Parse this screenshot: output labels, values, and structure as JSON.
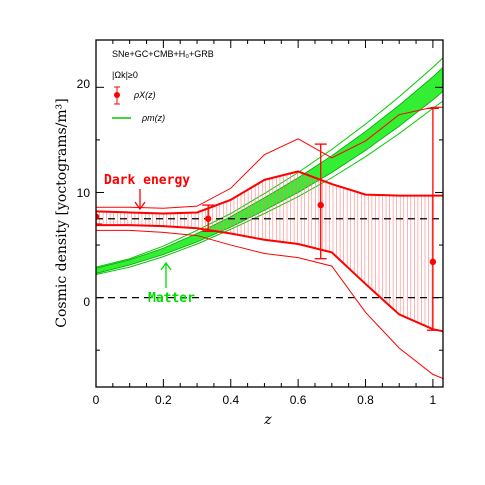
{
  "chart_data": {
    "type": "line",
    "xlabel": "z",
    "ylabel": "Cosmic density [yoctograms/m³]",
    "xlim": [
      0,
      1.03
    ],
    "ylim": [
      -8.5,
      24.5
    ],
    "x_ticks": [
      0,
      0.2,
      0.4,
      0.6,
      0.8,
      1
    ],
    "x_tick_labels": [
      "0",
      "0.2",
      "0.4",
      "0.6",
      "0.8",
      "1"
    ],
    "y_ticks": [
      0,
      10,
      20
    ],
    "y_tick_labels": [
      "0",
      "10",
      "20"
    ],
    "grid": false,
    "legend": {
      "placement": "top-left",
      "header": "SNe+GC+CMB+H₀+GRB",
      "condition": "|Ωk|≥0",
      "entries": [
        "ρX(z)",
        "ρm(z)"
      ]
    },
    "annotations": [
      {
        "text": "Dark energy",
        "color": "#ff0000",
        "arrow_to": [
          0.13,
          8.4
        ]
      },
      {
        "text": "Matter",
        "color": "#00dd00",
        "arrow_to": [
          0.21,
          4.3
        ]
      }
    ],
    "reference_lines": [
      {
        "y": 7.5,
        "style": "dashed"
      },
      {
        "y": 0,
        "style": "dashed"
      }
    ],
    "series": [
      {
        "name": "ρm(z)",
        "color": "#00cc00",
        "x": [
          0,
          0.1,
          0.2,
          0.3,
          0.4,
          0.5,
          0.6,
          0.7,
          0.8,
          0.9,
          1.0,
          1.03
        ],
        "values": [
          2.5,
          3.3,
          4.4,
          5.7,
          7.2,
          8.9,
          10.7,
          12.7,
          14.9,
          17.3,
          19.9,
          20.8
        ],
        "lower": [
          2.3,
          3.1,
          4.1,
          5.3,
          6.7,
          8.3,
          10.0,
          11.9,
          14.0,
          16.3,
          18.8,
          19.6
        ],
        "upper": [
          2.8,
          3.6,
          4.7,
          6.1,
          7.7,
          9.5,
          11.4,
          13.5,
          15.8,
          18.3,
          21.0,
          21.9
        ],
        "outer_lower": [
          2.2,
          2.9,
          3.9,
          5.1,
          6.5,
          8.0,
          9.6,
          11.4,
          13.4,
          15.6,
          18.0,
          18.7
        ],
        "outer_upper": [
          2.9,
          3.7,
          4.9,
          6.4,
          8.0,
          9.9,
          11.9,
          14.1,
          16.5,
          19.1,
          21.9,
          22.8
        ]
      },
      {
        "name": "ρX(z)",
        "color": "#ff0000",
        "x": [
          0,
          0.1,
          0.2,
          0.3,
          0.4,
          0.5,
          0.6,
          0.7,
          0.8,
          0.9,
          1.0,
          1.03
        ],
        "band_upper": [
          8.2,
          8.1,
          8.0,
          8.1,
          9.3,
          11.2,
          12.0,
          10.8,
          9.8,
          9.7,
          9.7,
          9.7
        ],
        "band_lower": [
          6.9,
          6.9,
          6.8,
          6.6,
          6.1,
          5.5,
          5.1,
          4.3,
          1.3,
          -1.6,
          -3.0,
          -3.2
        ],
        "outer_upper": [
          8.6,
          8.6,
          8.5,
          8.7,
          10.4,
          13.6,
          15.1,
          13.3,
          14.9,
          17.4,
          18.1,
          18.1
        ],
        "outer_lower": [
          6.4,
          6.4,
          6.2,
          5.9,
          5.0,
          4.2,
          3.8,
          3.0,
          -1.4,
          -4.8,
          -7.3,
          -7.7
        ],
        "points": [
          {
            "x": 0,
            "y": 7.7,
            "err_low": 7.0,
            "err_high": 8.2
          },
          {
            "x": 0.333,
            "y": 7.5,
            "err_low": 6.3,
            "err_high": 8.8
          },
          {
            "x": 0.667,
            "y": 8.8,
            "err_low": 3.7,
            "err_high": 14.6
          },
          {
            "x": 1.0,
            "y": 3.4,
            "err_low": -3.1,
            "err_high": 18.0
          }
        ]
      }
    ]
  }
}
